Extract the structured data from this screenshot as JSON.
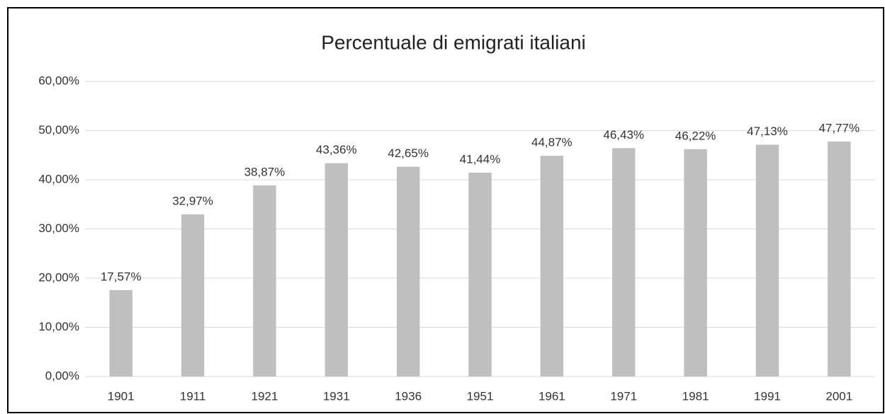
{
  "chart_data": {
    "type": "bar",
    "title": "Percentuale di emigrati italiani",
    "categories": [
      "1901",
      "1911",
      "1921",
      "1931",
      "1936",
      "1951",
      "1961",
      "1971",
      "1981",
      "1991",
      "2001"
    ],
    "values": [
      17.57,
      32.97,
      38.87,
      43.36,
      42.65,
      41.44,
      44.87,
      46.43,
      46.22,
      47.13,
      47.77
    ],
    "value_labels": [
      "17,57%",
      "32,97%",
      "38,87%",
      "43,36%",
      "42,65%",
      "41,44%",
      "44,87%",
      "46,43%",
      "46,22%",
      "47,13%",
      "47,77%"
    ],
    "color": "#bfbfbf",
    "ylim": [
      0,
      60
    ],
    "yticks": [
      {
        "value": 0,
        "label": "0,00%"
      },
      {
        "value": 10,
        "label": "10,00%"
      },
      {
        "value": 20,
        "label": "20,00%"
      },
      {
        "value": 30,
        "label": "30,00%"
      },
      {
        "value": 40,
        "label": "40,00%"
      },
      {
        "value": 50,
        "label": "50,00%"
      },
      {
        "value": 60,
        "label": "60,00%"
      }
    ],
    "grid": true
  }
}
